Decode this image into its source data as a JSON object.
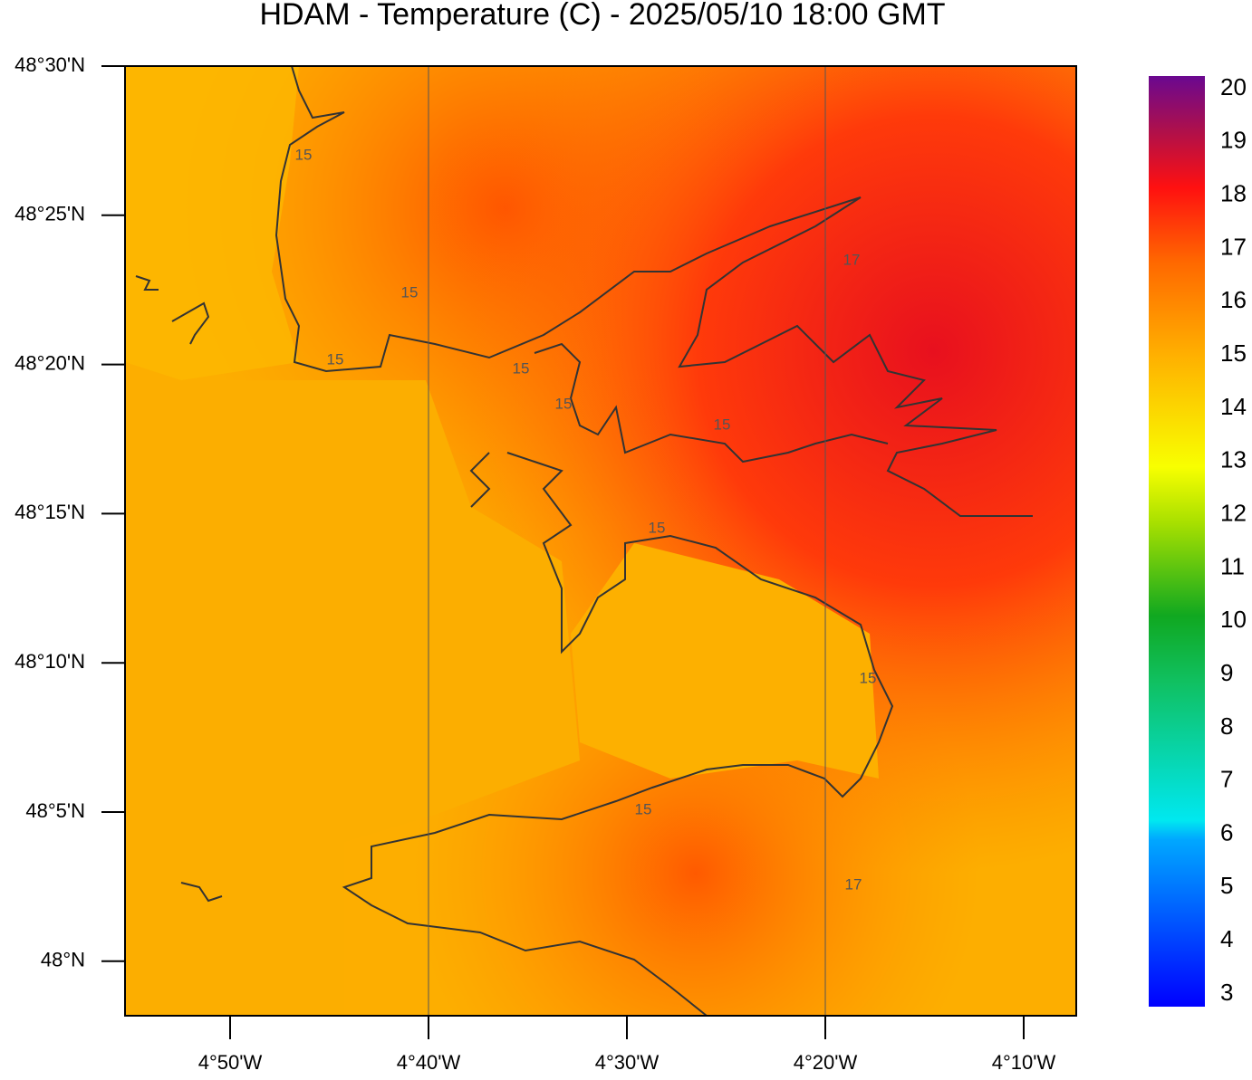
{
  "map": {
    "title": "HDAM - Temperature (C)  -  2025/05/10  18:00 GMT",
    "lat_labels": [
      "48°30'N",
      "48°25'N",
      "48°20'N",
      "48°15'N",
      "48°10'N",
      "48°5'N",
      "48°N"
    ],
    "lon_labels": [
      "4°50'W",
      "4°40'W",
      "4°30'W",
      "4°20'W",
      "4°10'W"
    ],
    "contour_labels": [
      "15",
      "15",
      "15",
      "15",
      "15",
      "15",
      "15",
      "15",
      "15",
      "17",
      "17"
    ],
    "colorbar": {
      "labels": [
        20,
        19,
        18,
        17,
        16,
        15,
        14,
        13,
        12,
        11,
        10,
        9,
        8,
        7,
        6,
        5,
        4,
        3
      ]
    }
  }
}
